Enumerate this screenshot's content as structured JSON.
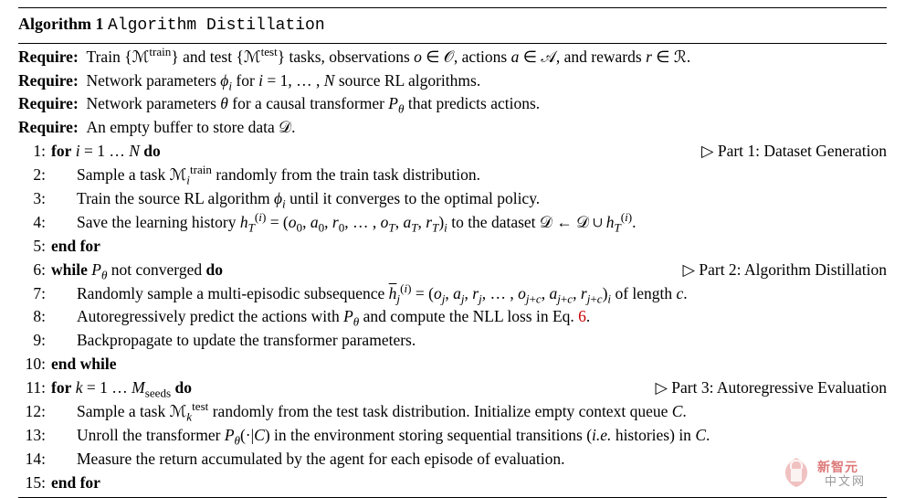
{
  "algorithm": {
    "number": "Algorithm 1",
    "name": "Algorithm Distillation",
    "requires": [
      "Train {ℳ<sup>train</sup>} and test {ℳ<sup>test</sup>} tasks, observations <i>o</i> ∈ 𝒪, actions <i>a</i> ∈ 𝒜, and rewards <i>r</i> ∈ ℛ.",
      "Network parameters <i>ϕ<sub>i</sub></i> for <i>i</i> = 1, … , <i>N</i> source RL algorithms.",
      "Network parameters <i>θ</i> for a causal transformer <i>P<sub>θ</sub></i> that predicts actions.",
      "An empty buffer to store data 𝒟."
    ],
    "steps": [
      {
        "n": "1:",
        "indent": 1,
        "text": "<b>for</b> <i>i</i> = 1 … <i>N</i> <b>do</b>",
        "comment": "▷ Part 1: Dataset Generation"
      },
      {
        "n": "2:",
        "indent": 2,
        "text": "Sample a task ℳ<sub><i>i</i></sub><sup>train</sup> randomly from the train task distribution."
      },
      {
        "n": "3:",
        "indent": 2,
        "text": "Train the source RL algorithm <i>ϕ<sub>i</sub></i> until it converges to the optimal policy."
      },
      {
        "n": "4:",
        "indent": 2,
        "text": "Save the learning history <i>h</i><sub><i>T</i></sub><sup>(<i>i</i>)</sup> = (<i>o</i><sub>0</sub>, <i>a</i><sub>0</sub>, <i>r</i><sub>0</sub>, … , <i>o<sub>T</sub></i>, <i>a<sub>T</sub></i>, <i>r<sub>T</sub></i>)<sub><i>i</i></sub> to the dataset 𝒟 ← 𝒟 ∪ <i>h</i><sub><i>T</i></sub><sup>(<i>i</i>)</sup>."
      },
      {
        "n": "5:",
        "indent": 1,
        "text": "<b>end for</b>"
      },
      {
        "n": "6:",
        "indent": 1,
        "text": "<b>while</b> <i>P<sub>θ</sub></i> not converged <b>do</b>",
        "comment": "▷ Part 2: Algorithm Distillation"
      },
      {
        "n": "7:",
        "indent": 2,
        "text": "Randomly sample a multi-episodic subsequence <span style='text-decoration:overline'><i>h</i></span><sub><i>j</i></sub><sup>(<i>i</i>)</sup> = (<i>o<sub>j</sub></i>, <i>a<sub>j</sub></i>, <i>r<sub>j</sub></i>, … , <i>o</i><sub><i>j</i>+<i>c</i></sub>, <i>a</i><sub><i>j</i>+<i>c</i></sub>, <i>r</i><sub><i>j</i>+<i>c</i></sub>)<sub><i>i</i></sub> of length <i>c</i>."
      },
      {
        "n": "8:",
        "indent": 2,
        "text": "Autoregressively predict the actions with <i>P<sub>θ</sub></i> and compute the NLL loss in Eq. <span class='eqref'>6</span>."
      },
      {
        "n": "9:",
        "indent": 2,
        "text": "Backpropagate to update the transformer parameters."
      },
      {
        "n": "10:",
        "indent": 1,
        "text": "<b>end while</b>"
      },
      {
        "n": "11:",
        "indent": 1,
        "text": "<b>for</b> <i>k</i> = 1 … <i>M</i><sub>seeds</sub> <b>do</b>",
        "comment": "▷ Part 3: Autoregressive Evaluation"
      },
      {
        "n": "12:",
        "indent": 2,
        "text": "Sample a task ℳ<sub><i>k</i></sub><sup>test</sup> randomly from the test task distribution. Initialize empty context queue <i>C</i>."
      },
      {
        "n": "13:",
        "indent": 2,
        "text": "Unroll the transformer <i>P<sub>θ</sub></i>(·|<i>C</i>) in the environment storing sequential transitions (<i>i.e.</i> histories) in <i>C</i>."
      },
      {
        "n": "14:",
        "indent": 2,
        "text": "Measure the return accumulated by the agent for each episode of evaluation."
      },
      {
        "n": "15:",
        "indent": 1,
        "text": "<b>end for</b>"
      }
    ]
  },
  "watermark": {
    "top": "新智元",
    "bottom": "中文网"
  }
}
